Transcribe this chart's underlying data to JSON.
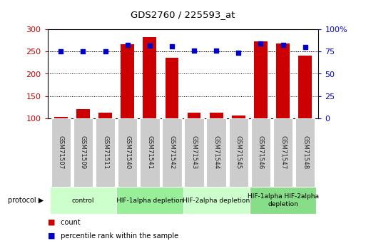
{
  "title": "GDS2760 / 225593_at",
  "samples": [
    "GSM71507",
    "GSM71509",
    "GSM71511",
    "GSM71540",
    "GSM71541",
    "GSM71542",
    "GSM71543",
    "GSM71544",
    "GSM71545",
    "GSM71546",
    "GSM71547",
    "GSM71548"
  ],
  "counts": [
    103,
    120,
    113,
    267,
    283,
    237,
    112,
    112,
    106,
    274,
    268,
    241
  ],
  "percentile_ranks": [
    75,
    75,
    75,
    83,
    82,
    81,
    76,
    76,
    74,
    84,
    83,
    80
  ],
  "protocols": [
    {
      "label": "control",
      "start": 0,
      "end": 3,
      "color": "#ccffcc"
    },
    {
      "label": "HIF-1alpha depletion",
      "start": 3,
      "end": 6,
      "color": "#99ee99"
    },
    {
      "label": "HIF-2alpha depletion",
      "start": 6,
      "end": 9,
      "color": "#ccffcc"
    },
    {
      "label": "HIF-1alpha HIF-2alpha\ndepletion",
      "start": 9,
      "end": 12,
      "color": "#88dd88"
    }
  ],
  "ylim_left": [
    100,
    300
  ],
  "ylim_right": [
    0,
    100
  ],
  "yticks_left": [
    100,
    150,
    200,
    250,
    300
  ],
  "yticks_right": [
    0,
    25,
    50,
    75,
    100
  ],
  "ytick_labels_right": [
    "0",
    "25",
    "50",
    "75",
    "100%"
  ],
  "bar_color": "#cc0000",
  "dot_color": "#0000cc",
  "bar_width": 0.6,
  "left_tick_color": "#cc0000",
  "right_tick_color": "#0000cc",
  "sample_box_color": "#cccccc",
  "spine_color": "#000000"
}
